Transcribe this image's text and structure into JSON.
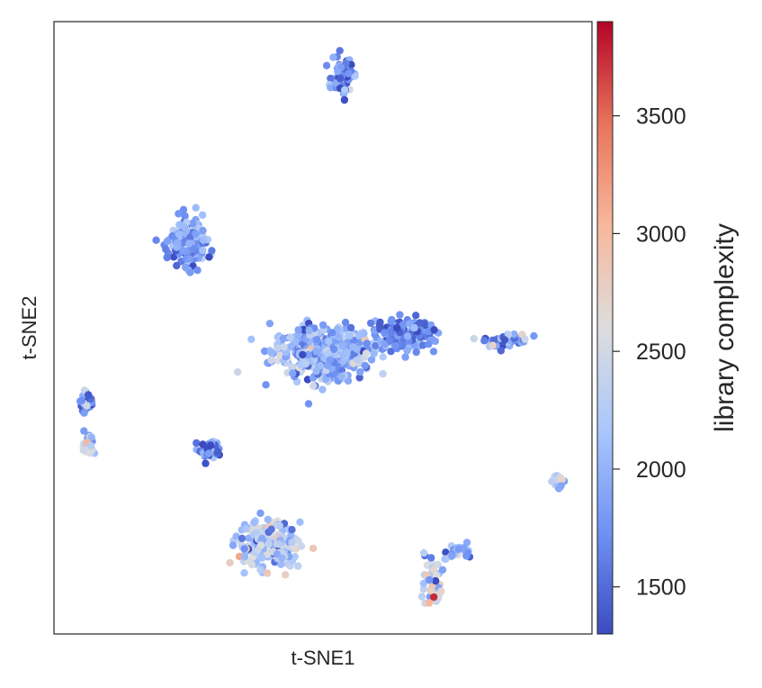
{
  "chart_data": {
    "type": "scatter",
    "title": "",
    "xlabel": "t-SNE1",
    "ylabel": "t-SNE2",
    "x_ticks_shown": false,
    "y_ticks_shown": false,
    "grid": false,
    "colorbar": {
      "label": "library complexity",
      "colormap": "coolwarm",
      "range": [
        1300,
        3900
      ],
      "ticks": [
        1500,
        2000,
        2500,
        3000,
        3500
      ],
      "tick_labels": [
        "1500",
        "2000",
        "2500",
        "3000",
        "3500"
      ],
      "color_stops": [
        "#3b4cc0",
        "#6f92f3",
        "#aac7fd",
        "#dddddd",
        "#f7b89c",
        "#e7745b",
        "#b40426"
      ]
    },
    "xlim": [
      0,
      100
    ],
    "ylim": [
      0,
      100
    ],
    "clusters": [
      {
        "cx": 50,
        "cy": 46,
        "sx": 8.5,
        "sy": 3.8,
        "n": 460,
        "color_mean": 2000,
        "color_spread": 500
      },
      {
        "cx": 65,
        "cy": 49,
        "sx": 5.0,
        "sy": 2.4,
        "n": 160,
        "color_mean": 1650,
        "color_spread": 350
      },
      {
        "cx": 84,
        "cy": 48,
        "sx": 3.6,
        "sy": 1.0,
        "n": 60,
        "color_mean": 1800,
        "color_spread": 700
      },
      {
        "cx": 25,
        "cy": 64,
        "sx": 2.9,
        "sy": 3.5,
        "n": 200,
        "color_mean": 1800,
        "color_spread": 450
      },
      {
        "cx": 53.5,
        "cy": 91,
        "sx": 1.7,
        "sy": 2.6,
        "n": 70,
        "color_mean": 1700,
        "color_spread": 550
      },
      {
        "cx": 40,
        "cy": 14.5,
        "sx": 5.2,
        "sy": 3.4,
        "n": 210,
        "color_mean": 2200,
        "color_spread": 600
      },
      {
        "cx": 70.5,
        "cy": 8.5,
        "sx": 1.5,
        "sy": 4.0,
        "n": 45,
        "color_mean": 2400,
        "color_spread": 800
      },
      {
        "cx": 75,
        "cy": 13.5,
        "sx": 2.4,
        "sy": 1.5,
        "n": 25,
        "color_mean": 2000,
        "color_spread": 700
      },
      {
        "cx": 6,
        "cy": 38,
        "sx": 1.2,
        "sy": 1.3,
        "n": 35,
        "color_mean": 1800,
        "color_spread": 600
      },
      {
        "cx": 6.5,
        "cy": 30.5,
        "sx": 1.2,
        "sy": 2.2,
        "n": 22,
        "color_mean": 2300,
        "color_spread": 800
      },
      {
        "cx": 29,
        "cy": 30,
        "sx": 1.9,
        "sy": 1.4,
        "n": 55,
        "color_mean": 1700,
        "color_spread": 450
      },
      {
        "cx": 93.5,
        "cy": 25,
        "sx": 0.9,
        "sy": 1.2,
        "n": 20,
        "color_mean": 2300,
        "color_spread": 700
      }
    ]
  }
}
